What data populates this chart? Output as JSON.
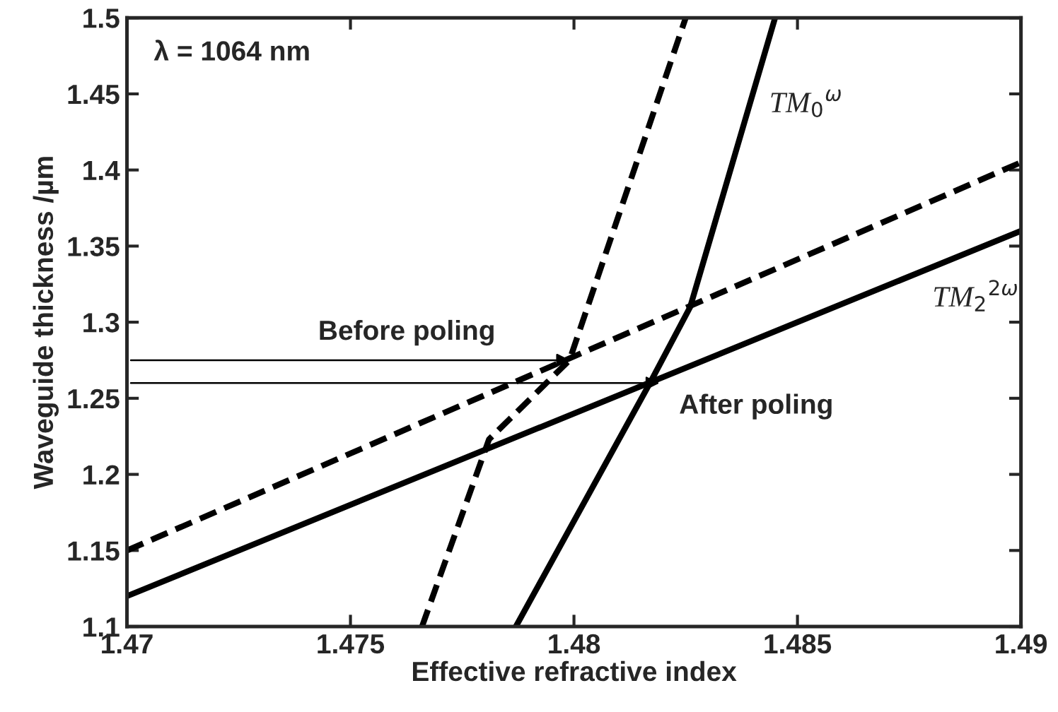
{
  "chart_data": {
    "type": "line",
    "xlabel": "Effective refractive index",
    "ylabel": "Waveguide thickness /µm",
    "xlim": [
      1.47,
      1.49
    ],
    "xticks": [
      1.47,
      1.475,
      1.48,
      1.485,
      1.49
    ],
    "ylim": [
      1.1,
      1.5
    ],
    "yticks": [
      1.1,
      1.15,
      1.2,
      1.25,
      1.3,
      1.35,
      1.4,
      1.45,
      1.5
    ],
    "grid": false,
    "series": [
      {
        "name": "TM$_{0}$$^{ω}$",
        "color": "#000000",
        "line_style": "solid",
        "x": [
          1.4787,
          1.4817,
          1.4826,
          1.4845
        ],
        "values": [
          1.1,
          1.26,
          1.31,
          1.5
        ]
      },
      {
        "color": "#000000",
        "line_style": "dashed",
        "x": [
          1.4766,
          1.4781,
          1.4799,
          1.4825
        ],
        "values": [
          1.1,
          1.223,
          1.275,
          1.5
        ]
      },
      {
        "name": "TM$_{2}$$^{2ω}$",
        "color": "#000000",
        "line_style": "solid",
        "x": [
          1.47,
          1.49
        ],
        "values": [
          1.12,
          1.36
        ]
      },
      {
        "color": "#000000",
        "line_style": "dashed",
        "x": [
          1.47,
          1.49
        ],
        "values": [
          1.15,
          1.405
        ]
      }
    ],
    "annotations": [
      "λ = 1064 nm",
      {
        "text": "Before poling",
        "x": 1.48,
        "y": 1.275
      },
      {
        "text": "After poling",
        "x": 1.482,
        "y": 1.26
      }
    ]
  }
}
